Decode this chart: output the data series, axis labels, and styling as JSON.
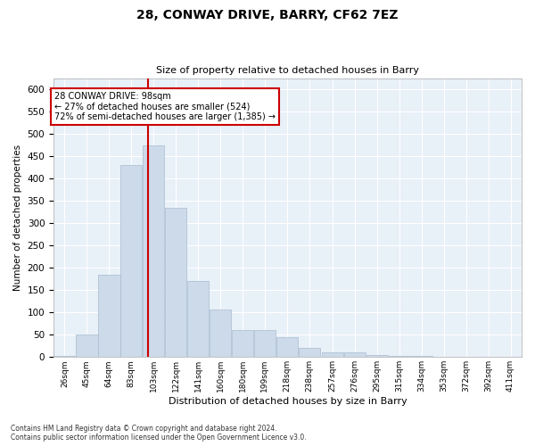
{
  "title": "28, CONWAY DRIVE, BARRY, CF62 7EZ",
  "subtitle": "Size of property relative to detached houses in Barry",
  "xlabel": "Distribution of detached houses by size in Barry",
  "ylabel": "Number of detached properties",
  "bar_color": "#ccdaea",
  "bar_edge_color": "#aabcce",
  "background_color": "#e8f0f8",
  "vline_x": 98,
  "vline_color": "#cc0000",
  "annotation_text": "28 CONWAY DRIVE: 98sqm\n← 27% of detached houses are smaller (524)\n72% of semi-detached houses are larger (1,385) →",
  "annotation_box_color": "#ffffff",
  "annotation_border_color": "#cc0000",
  "categories": [
    "26sqm",
    "45sqm",
    "64sqm",
    "83sqm",
    "103sqm",
    "122sqm",
    "141sqm",
    "160sqm",
    "180sqm",
    "199sqm",
    "218sqm",
    "238sqm",
    "257sqm",
    "276sqm",
    "295sqm",
    "315sqm",
    "334sqm",
    "353sqm",
    "372sqm",
    "392sqm",
    "411sqm"
  ],
  "bin_edges": [
    17,
    36,
    55,
    74,
    93,
    112,
    131,
    150,
    169,
    188,
    207,
    226,
    246,
    265,
    284,
    303,
    322,
    341,
    360,
    379,
    398,
    417
  ],
  "values": [
    3,
    50,
    185,
    430,
    475,
    335,
    170,
    106,
    60,
    60,
    45,
    20,
    10,
    10,
    5,
    3,
    2,
    1,
    1,
    1,
    1
  ],
  "ylim": [
    0,
    625
  ],
  "yticks": [
    0,
    50,
    100,
    150,
    200,
    250,
    300,
    350,
    400,
    450,
    500,
    550,
    600
  ],
  "footnote1": "Contains HM Land Registry data © Crown copyright and database right 2024.",
  "footnote2": "Contains public sector information licensed under the Open Government Licence v3.0."
}
